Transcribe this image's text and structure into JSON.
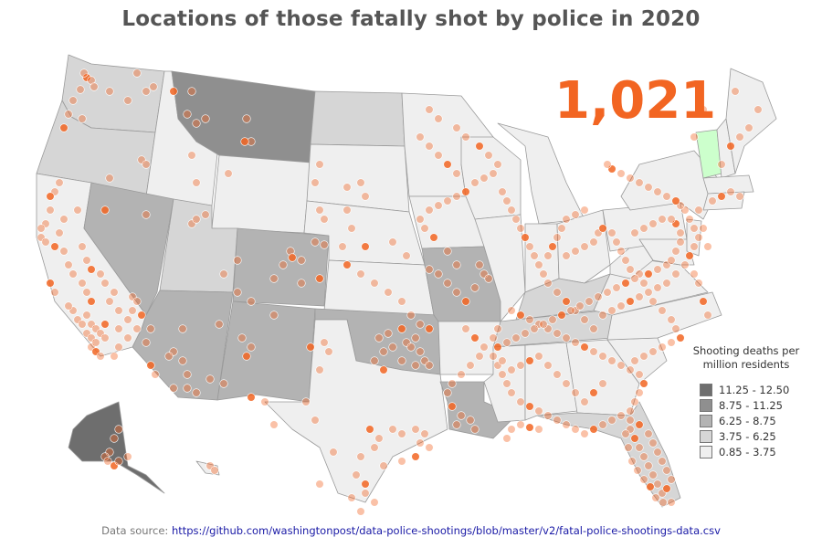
{
  "title": "Locations of those fatally shot by police in 2020",
  "total_count": "1,021",
  "legend": {
    "title": "Shooting deaths per million residents",
    "items": [
      {
        "label": "11.25 - 12.50",
        "color": "#6e6e6e"
      },
      {
        "label": "8.75 - 11.25",
        "color": "#8f8f8f"
      },
      {
        "label": "6.25 - 8.75",
        "color": "#b3b3b3"
      },
      {
        "label": "3.75 - 6.25",
        "color": "#d6d6d6"
      },
      {
        "label": "0.85 - 3.75",
        "color": "#efefef"
      }
    ]
  },
  "source": {
    "label": "Data source:",
    "url": "https://github.com/washingtonpost/data-police-shootings/blob/master/v2/fatal-police-shootings-data.csv"
  },
  "colors": {
    "dot": "#f26522",
    "vermont_fill": "#ccffcc",
    "count_color": "#f26522"
  }
}
